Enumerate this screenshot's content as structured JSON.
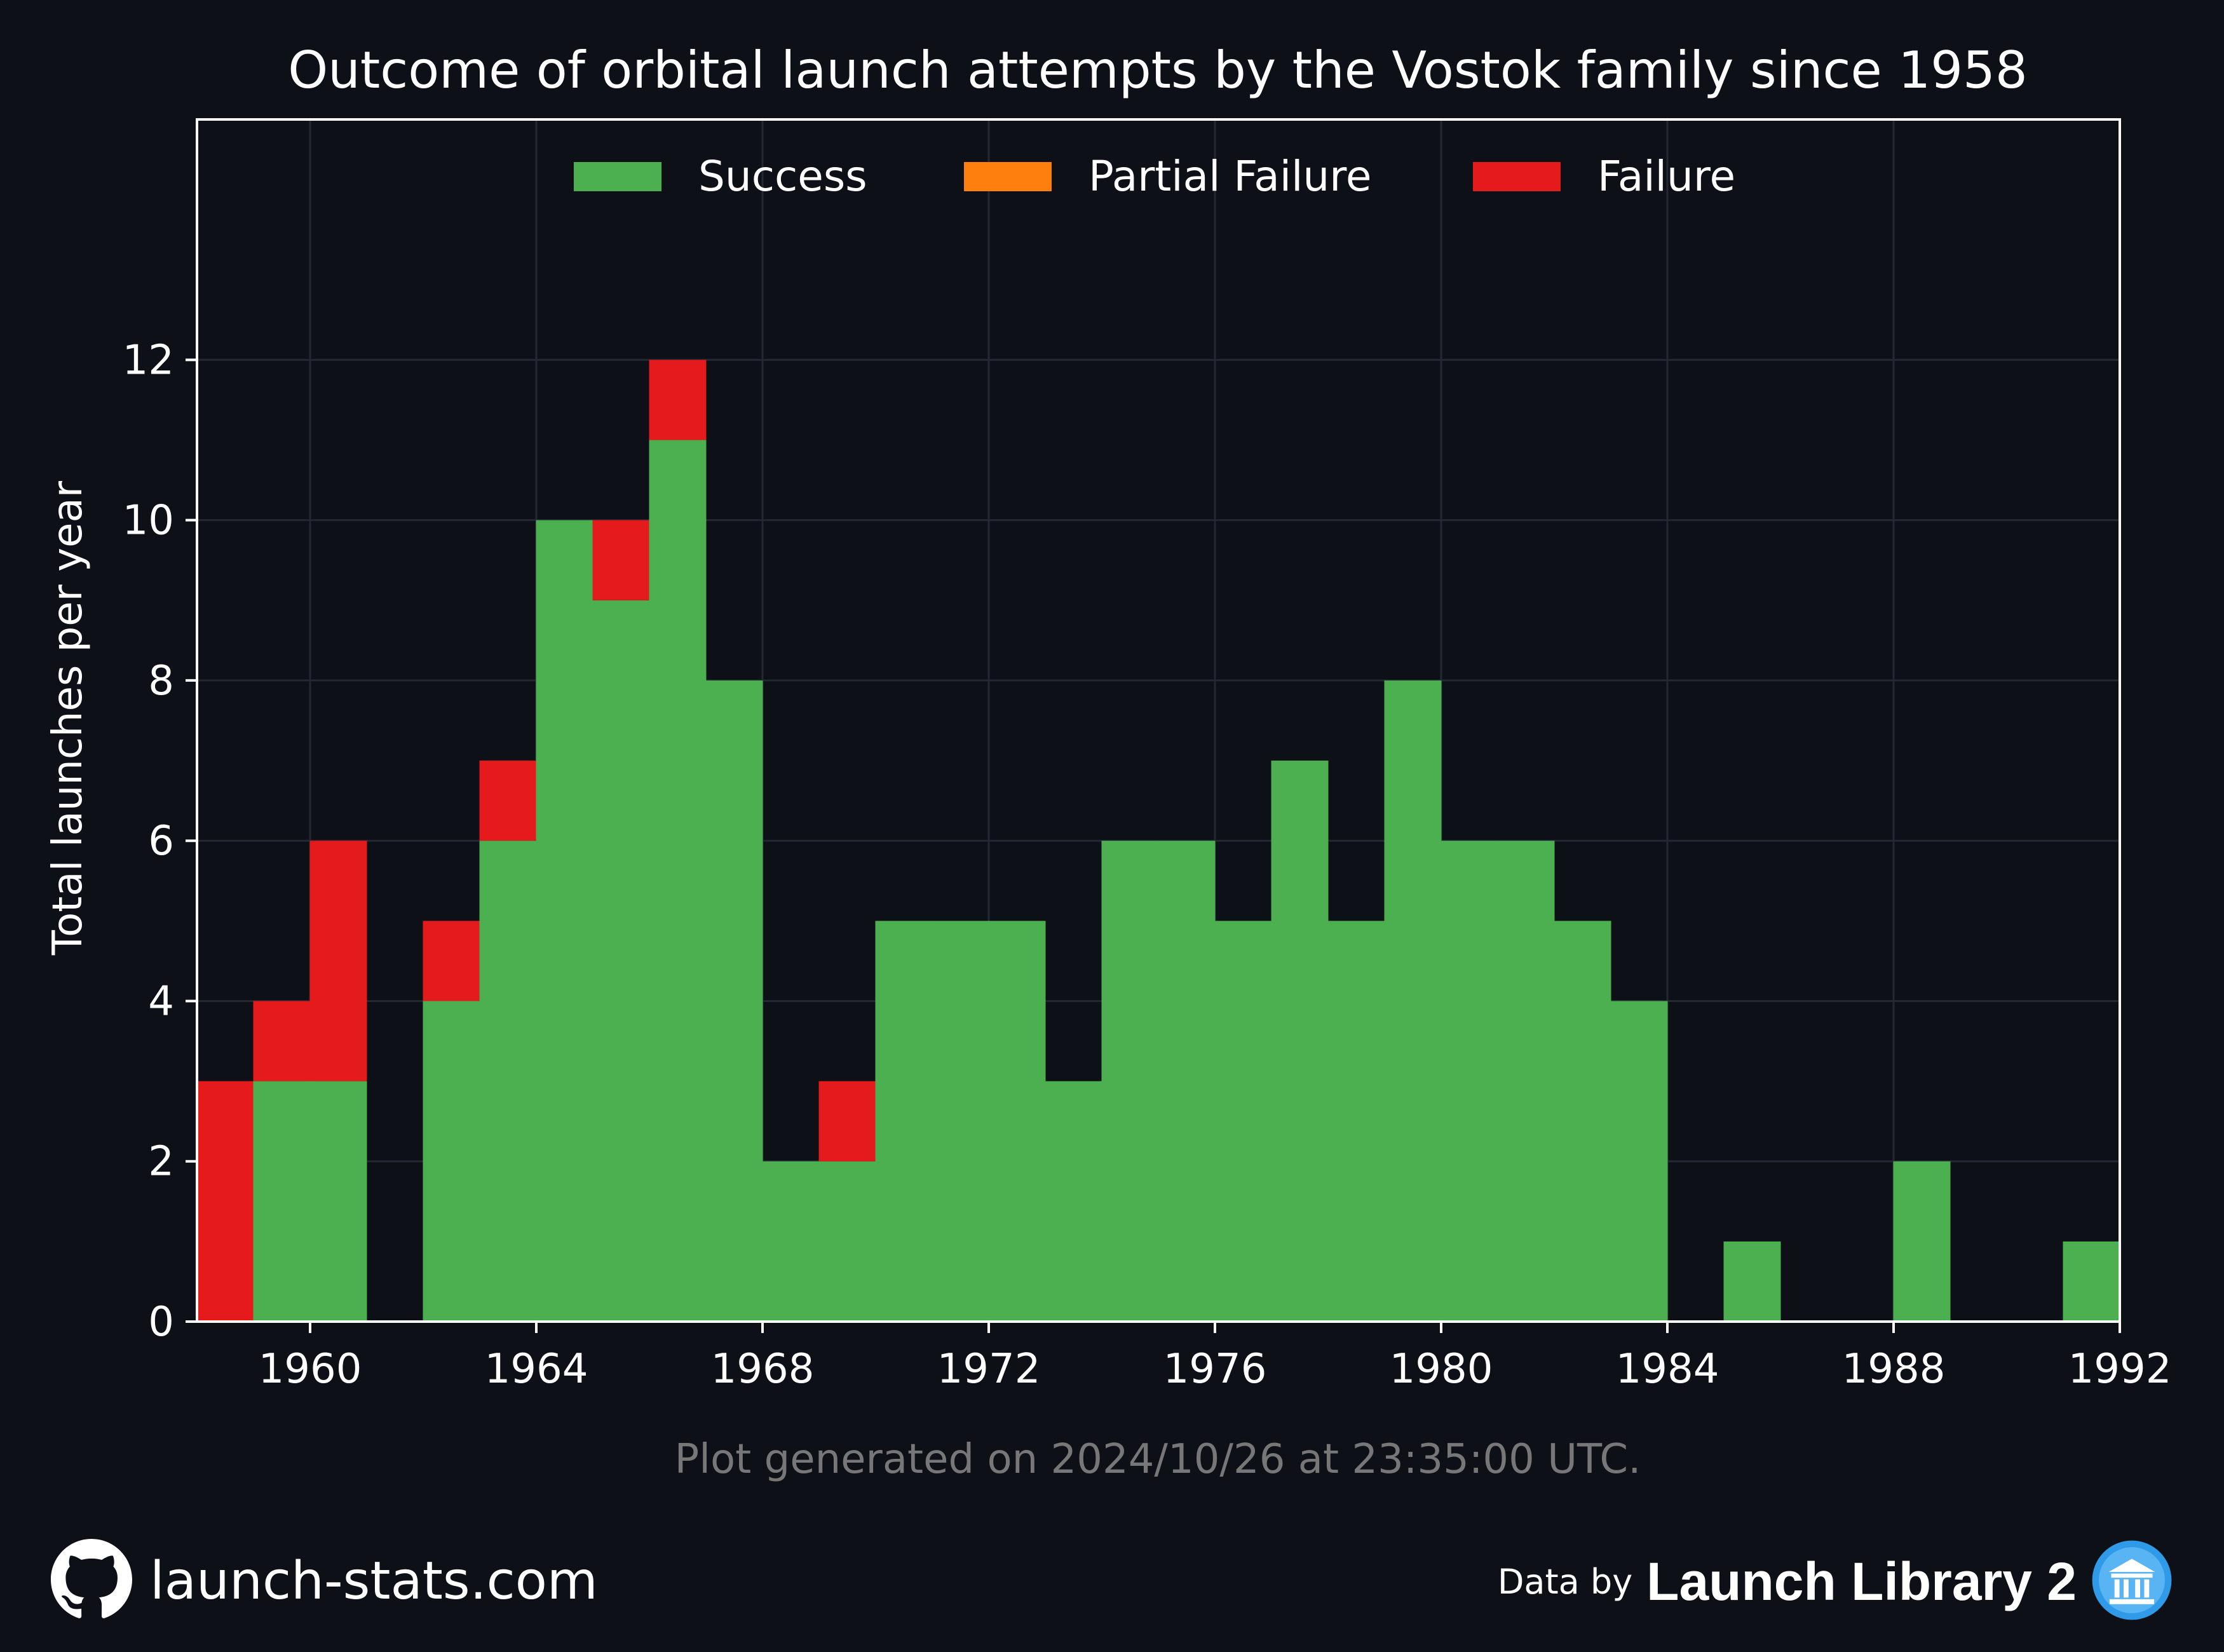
{
  "chart_data": {
    "type": "bar",
    "stacked": true,
    "title": "Outcome of orbital launch attempts by the Vostok family since 1958",
    "xlabel": "",
    "ylabel": "Total launches per year",
    "xlim": [
      1958,
      1992
    ],
    "ylim": [
      0,
      15
    ],
    "x_ticks": [
      1960,
      1964,
      1968,
      1972,
      1976,
      1980,
      1984,
      1988,
      1992
    ],
    "y_ticks": [
      0,
      2,
      4,
      6,
      8,
      10,
      12
    ],
    "grid": true,
    "legend_position": "top-center",
    "years": [
      1958,
      1959,
      1960,
      1961,
      1962,
      1963,
      1964,
      1965,
      1966,
      1967,
      1968,
      1969,
      1970,
      1971,
      1972,
      1973,
      1974,
      1975,
      1976,
      1977,
      1978,
      1979,
      1980,
      1981,
      1982,
      1983,
      1984,
      1985,
      1986,
      1987,
      1988,
      1989,
      1990,
      1991
    ],
    "series": [
      {
        "name": "Success",
        "color": "#4caf50",
        "values": [
          0,
          3,
          3,
          0,
          4,
          6,
          10,
          9,
          11,
          8,
          2,
          2,
          5,
          5,
          5,
          3,
          6,
          6,
          5,
          7,
          5,
          8,
          6,
          6,
          5,
          4,
          0,
          1,
          0,
          0,
          2,
          0,
          0,
          1
        ]
      },
      {
        "name": "Partial Failure",
        "color": "#ff7f0e",
        "values": [
          0,
          0,
          0,
          0,
          0,
          0,
          0,
          0,
          0,
          0,
          0,
          0,
          0,
          0,
          0,
          0,
          0,
          0,
          0,
          0,
          0,
          0,
          0,
          0,
          0,
          0,
          0,
          0,
          0,
          0,
          0,
          0,
          0,
          0
        ]
      },
      {
        "name": "Failure",
        "color": "#e41a1c",
        "values": [
          3,
          1,
          3,
          0,
          1,
          1,
          0,
          1,
          1,
          0,
          0,
          1,
          0,
          0,
          0,
          0,
          0,
          0,
          0,
          0,
          0,
          0,
          0,
          0,
          0,
          0,
          0,
          0,
          0,
          0,
          0,
          0,
          0,
          0
        ]
      }
    ]
  },
  "note": "Plot generated on 2024/10/26 at 23:35:00 UTC.",
  "footer": {
    "site": "launch-stats.com",
    "site_icon": "github-icon",
    "credit_prefix": "Data by",
    "credit_name": "Launch Library 2",
    "credit_icon": "launch-library-logo-icon"
  },
  "colors": {
    "background": "#0d1017",
    "grid": "#232833",
    "axes": "#ffffff",
    "note_text": "#777777"
  }
}
